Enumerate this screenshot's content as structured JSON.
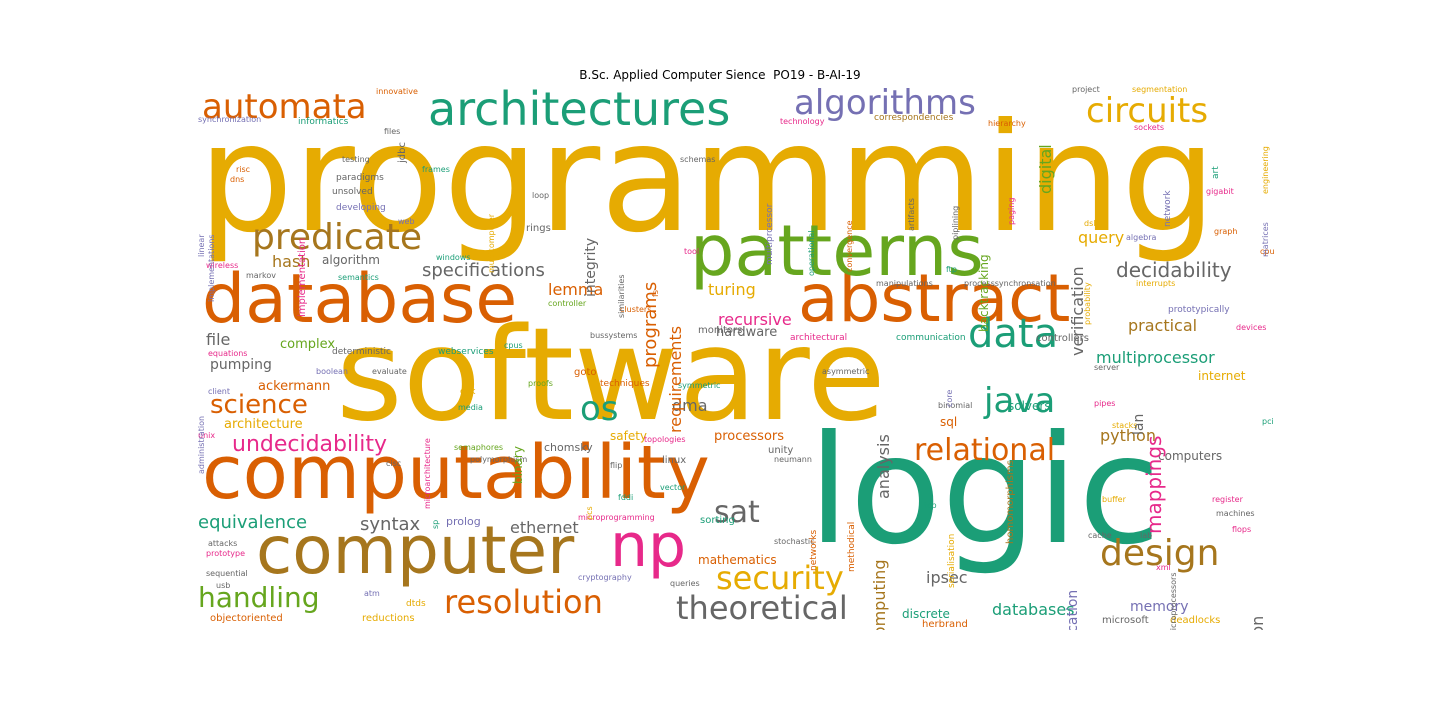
{
  "title": "B.Sc. Applied Computer Sience  PO19 - B-AI-19",
  "palette": {
    "orange": "#d95f02",
    "gold": "#e6ab02",
    "teal": "#1b9e77",
    "purple": "#7570b3",
    "magenta": "#e7298a",
    "green": "#66a61e",
    "brown": "#a6761d",
    "gray": "#666666"
  },
  "words": [
    {
      "text": "programming",
      "color": "gold",
      "size": 150,
      "rot": 0
    },
    {
      "text": "software",
      "color": "gold",
      "size": 128,
      "rot": 0
    },
    {
      "text": "logic",
      "color": "teal",
      "size": 150,
      "rot": 0
    },
    {
      "text": "computability",
      "color": "orange",
      "size": 74,
      "rot": 0
    },
    {
      "text": "database",
      "color": "orange",
      "size": 68,
      "rot": 0
    },
    {
      "text": "abstract",
      "color": "orange",
      "size": 66,
      "rot": 0
    },
    {
      "text": "patterns",
      "color": "green",
      "size": 70,
      "rot": 0
    },
    {
      "text": "computer",
      "color": "brown",
      "size": 66,
      "rot": 0
    },
    {
      "text": "architectures",
      "color": "teal",
      "size": 46,
      "rot": 0
    },
    {
      "text": "np",
      "color": "magenta",
      "size": 60,
      "rot": 0
    },
    {
      "text": "automata",
      "color": "orange",
      "size": 34,
      "rot": 0
    },
    {
      "text": "algorithms",
      "color": "purple",
      "size": 34,
      "rot": 0
    },
    {
      "text": "circuits",
      "color": "gold",
      "size": 34,
      "rot": 0
    },
    {
      "text": "predicate",
      "color": "brown",
      "size": 36,
      "rot": 0
    },
    {
      "text": "data",
      "color": "teal",
      "size": 40,
      "rot": 0
    },
    {
      "text": "java",
      "color": "teal",
      "size": 34,
      "rot": 0
    },
    {
      "text": "design",
      "color": "brown",
      "size": 36,
      "rot": 0
    },
    {
      "text": "security",
      "color": "gold",
      "size": 32,
      "rot": 0
    },
    {
      "text": "resolution",
      "color": "orange",
      "size": 32,
      "rot": 0
    },
    {
      "text": "theoretical",
      "color": "gray",
      "size": 32,
      "rot": 0
    },
    {
      "text": "relational",
      "color": "orange",
      "size": 30,
      "rot": 0
    },
    {
      "text": "handling",
      "color": "green",
      "size": 28,
      "rot": 0
    },
    {
      "text": "science",
      "color": "orange",
      "size": 26,
      "rot": 0
    },
    {
      "text": "os",
      "color": "teal",
      "size": 34,
      "rot": 0
    },
    {
      "text": "sat",
      "color": "gray",
      "size": 30,
      "rot": 0
    },
    {
      "text": "undecidability",
      "color": "magenta",
      "size": 22,
      "rot": 0
    },
    {
      "text": "decidability",
      "color": "gray",
      "size": 20,
      "rot": 0
    },
    {
      "text": "specifications",
      "color": "gray",
      "size": 18,
      "rot": 0
    },
    {
      "text": "equivalence",
      "color": "teal",
      "size": 18,
      "rot": 0
    },
    {
      "text": "syntax",
      "color": "gray",
      "size": 18,
      "rot": 0
    },
    {
      "text": "ethernet",
      "color": "gray",
      "size": 16,
      "rot": 0
    },
    {
      "text": "multiprocessor",
      "color": "teal",
      "size": 16,
      "rot": 0
    },
    {
      "text": "practical",
      "color": "brown",
      "size": 16,
      "rot": 0
    },
    {
      "text": "query",
      "color": "gold",
      "size": 16,
      "rot": 0
    },
    {
      "text": "python",
      "color": "brown",
      "size": 16,
      "rot": 0
    },
    {
      "text": "ipsec",
      "color": "gray",
      "size": 16,
      "rot": 0
    },
    {
      "text": "databases",
      "color": "teal",
      "size": 16,
      "rot": 0
    },
    {
      "text": "memory",
      "color": "purple",
      "size": 14,
      "rot": 0
    },
    {
      "text": "hash",
      "color": "brown",
      "size": 16,
      "rot": 0
    },
    {
      "text": "file",
      "color": "gray",
      "size": 16,
      "rot": 0
    },
    {
      "text": "lemma",
      "color": "orange",
      "size": 16,
      "rot": 0
    },
    {
      "text": "turing",
      "color": "gold",
      "size": 16,
      "rot": 0
    },
    {
      "text": "recursive",
      "color": "magenta",
      "size": 16,
      "rot": 0
    },
    {
      "text": "hardware",
      "color": "gray",
      "size": 13,
      "rot": 0
    },
    {
      "text": "pumping",
      "color": "gray",
      "size": 14,
      "rot": 0
    },
    {
      "text": "dma",
      "color": "gray",
      "size": 16,
      "rot": 0
    },
    {
      "text": "ackermann",
      "color": "orange",
      "size": 13,
      "rot": 0
    },
    {
      "text": "architecture",
      "color": "gold",
      "size": 13,
      "rot": 0
    },
    {
      "text": "complex",
      "color": "green",
      "size": 13,
      "rot": 0
    },
    {
      "text": "algorithm",
      "color": "gray",
      "size": 12,
      "rot": 0
    },
    {
      "text": "processors",
      "color": "orange",
      "size": 13,
      "rot": 0
    },
    {
      "text": "internet",
      "color": "gold",
      "size": 12,
      "rot": 0
    },
    {
      "text": "solvers",
      "color": "teal",
      "size": 12,
      "rot": 0
    },
    {
      "text": "computers",
      "color": "gray",
      "size": 12,
      "rot": 0
    },
    {
      "text": "mathematics",
      "color": "orange",
      "size": 12,
      "rot": 0
    },
    {
      "text": "safety",
      "color": "gold",
      "size": 12,
      "rot": 0
    },
    {
      "text": "sql",
      "color": "orange",
      "size": 12,
      "rot": 0
    },
    {
      "text": "discrete",
      "color": "teal",
      "size": 12,
      "rot": 0
    },
    {
      "text": "sorting",
      "color": "teal",
      "size": 10,
      "rot": 0
    },
    {
      "text": "chomsky",
      "color": "gray",
      "size": 11,
      "rot": 0
    },
    {
      "text": "prolog",
      "color": "purple",
      "size": 11,
      "rot": 0
    },
    {
      "text": "herbrand",
      "color": "orange",
      "size": 10,
      "rot": 0
    },
    {
      "text": "reductions",
      "color": "gold",
      "size": 10,
      "rot": 0
    },
    {
      "text": "objectoriented",
      "color": "orange",
      "size": 10,
      "rot": 0
    },
    {
      "text": "microsoft",
      "color": "gray",
      "size": 10,
      "rot": 0
    },
    {
      "text": "deadlocks",
      "color": "gold",
      "size": 10,
      "rot": 0
    },
    {
      "text": "linux",
      "color": "gray",
      "size": 10,
      "rot": 0
    },
    {
      "text": "unity",
      "color": "gray",
      "size": 10,
      "rot": 0
    },
    {
      "text": "goto",
      "color": "orange",
      "size": 10,
      "rot": 0
    },
    {
      "text": "techniques",
      "color": "orange",
      "size": 9,
      "rot": 0
    },
    {
      "text": "monitors",
      "color": "gray",
      "size": 10,
      "rot": 0
    },
    {
      "text": "controllers",
      "color": "gray",
      "size": 10,
      "rot": 0
    },
    {
      "text": "communication",
      "color": "teal",
      "size": 9,
      "rot": 0
    },
    {
      "text": "architectural",
      "color": "magenta",
      "size": 9,
      "rot": 0
    },
    {
      "text": "deterministic",
      "color": "gray",
      "size": 9,
      "rot": 0
    },
    {
      "text": "webservices",
      "color": "teal",
      "size": 9,
      "rot": 0
    },
    {
      "text": "evaluate",
      "color": "gray",
      "size": 8,
      "rot": 0
    },
    {
      "text": "boolean",
      "color": "purple",
      "size": 8,
      "rot": 0
    },
    {
      "text": "client",
      "color": "purple",
      "size": 8,
      "rot": 0
    },
    {
      "text": "equations",
      "color": "magenta",
      "size": 8,
      "rot": 0
    },
    {
      "text": "unix",
      "color": "magenta",
      "size": 8,
      "rot": 0
    },
    {
      "text": "cisc",
      "color": "gray",
      "size": 8,
      "rot": 0
    },
    {
      "text": "attacks",
      "color": "gray",
      "size": 8,
      "rot": 0
    },
    {
      "text": "prototype",
      "color": "magenta",
      "size": 8,
      "rot": 0
    },
    {
      "text": "sequential",
      "color": "gray",
      "size": 8,
      "rot": 0
    },
    {
      "text": "usb",
      "color": "gray",
      "size": 8,
      "rot": 0
    },
    {
      "text": "atm",
      "color": "purple",
      "size": 8,
      "rot": 0
    },
    {
      "text": "dtds",
      "color": "gold",
      "size": 9,
      "rot": 0
    },
    {
      "text": "queries",
      "color": "gray",
      "size": 8,
      "rot": 0
    },
    {
      "text": "cryptography",
      "color": "purple",
      "size": 8,
      "rot": 0
    },
    {
      "text": "microprogramming",
      "color": "magenta",
      "size": 8,
      "rot": 0
    },
    {
      "text": "stochastic",
      "color": "gray",
      "size": 8,
      "rot": 0
    },
    {
      "text": "fddi",
      "color": "teal",
      "size": 8,
      "rot": 0
    },
    {
      "text": "flip",
      "color": "gray",
      "size": 8,
      "rot": 0
    },
    {
      "text": "vector",
      "color": "teal",
      "size": 8,
      "rot": 0
    },
    {
      "text": "semaphores",
      "color": "green",
      "size": 8,
      "rot": 0
    },
    {
      "text": "polymorphism",
      "color": "gray",
      "size": 8,
      "rot": 0
    },
    {
      "text": "topologies",
      "color": "magenta",
      "size": 8,
      "rot": 0
    },
    {
      "text": "media",
      "color": "teal",
      "size": 8,
      "rot": 0
    },
    {
      "text": "cyk",
      "color": "gold",
      "size": 9,
      "rot": 0
    },
    {
      "text": "proofs",
      "color": "green",
      "size": 8,
      "rot": 0
    },
    {
      "text": "symmetric",
      "color": "teal",
      "size": 8,
      "rot": 0
    },
    {
      "text": "asymmetric",
      "color": "gray",
      "size": 8,
      "rot": 0
    },
    {
      "text": "bussystems",
      "color": "gray",
      "size": 8,
      "rot": 0
    },
    {
      "text": "cpus",
      "color": "teal",
      "size": 8,
      "rot": 0
    },
    {
      "text": "clusters",
      "color": "orange",
      "size": 8,
      "rot": 0
    },
    {
      "text": "controller",
      "color": "green",
      "size": 8,
      "rot": 0
    },
    {
      "text": "manipulations",
      "color": "gray",
      "size": 8,
      "rot": 0
    },
    {
      "text": "processsynchronsation",
      "color": "gray",
      "size": 8,
      "rot": 0
    },
    {
      "text": "interrupts",
      "color": "gold",
      "size": 8,
      "rot": 0
    },
    {
      "text": "prototypically",
      "color": "purple",
      "size": 9,
      "rot": 0
    },
    {
      "text": "devices",
      "color": "magenta",
      "size": 8,
      "rot": 0
    },
    {
      "text": "server",
      "color": "gray",
      "size": 8,
      "rot": 0
    },
    {
      "text": "pipes",
      "color": "magenta",
      "size": 8,
      "rot": 0
    },
    {
      "text": "pci",
      "color": "teal",
      "size": 8,
      "rot": 0
    },
    {
      "text": "stacks",
      "color": "gold",
      "size": 8,
      "rot": 0
    },
    {
      "text": "buffer",
      "color": "gold",
      "size": 8,
      "rot": 0
    },
    {
      "text": "register",
      "color": "magenta",
      "size": 8,
      "rot": 0
    },
    {
      "text": "machines",
      "color": "gray",
      "size": 8,
      "rot": 0
    },
    {
      "text": "flops",
      "color": "magenta",
      "size": 8,
      "rot": 0
    },
    {
      "text": "cache",
      "color": "gray",
      "size": 8,
      "rot": 0
    },
    {
      "text": "lab",
      "color": "gray",
      "size": 8,
      "rot": 0
    },
    {
      "text": "xml",
      "color": "magenta",
      "size": 8,
      "rot": 0
    },
    {
      "text": "tcp",
      "color": "teal",
      "size": 8,
      "rot": 0
    },
    {
      "text": "binomial",
      "color": "gray",
      "size": 8,
      "rot": 0
    },
    {
      "text": "neumann",
      "color": "gray",
      "size": 8,
      "rot": 0
    },
    {
      "text": "ftp",
      "color": "teal",
      "size": 8,
      "rot": 0
    },
    {
      "text": "tool",
      "color": "magenta",
      "size": 8,
      "rot": 0
    },
    {
      "text": "windows",
      "color": "teal",
      "size": 8,
      "rot": 0
    },
    {
      "text": "semantics",
      "color": "teal",
      "size": 8,
      "rot": 0
    },
    {
      "text": "markov",
      "color": "gray",
      "size": 8,
      "rot": 0
    },
    {
      "text": "wireless",
      "color": "magenta",
      "size": 8,
      "rot": 0
    },
    {
      "text": "rings",
      "color": "gray",
      "size": 10,
      "rot": 0
    },
    {
      "text": "loop",
      "color": "gray",
      "size": 8,
      "rot": 0
    },
    {
      "text": "frames",
      "color": "teal",
      "size": 8,
      "rot": 0
    },
    {
      "text": "testing",
      "color": "gray",
      "size": 8,
      "rot": 0
    },
    {
      "text": "paradigms",
      "color": "gray",
      "size": 9,
      "rot": 0
    },
    {
      "text": "unsolved",
      "color": "gray",
      "size": 9,
      "rot": 0
    },
    {
      "text": "developing",
      "color": "purple",
      "size": 9,
      "rot": 0
    },
    {
      "text": "web",
      "color": "purple",
      "size": 8,
      "rot": 0
    },
    {
      "text": "dns",
      "color": "orange",
      "size": 8,
      "rot": 0
    },
    {
      "text": "risc",
      "color": "orange",
      "size": 8,
      "rot": 0
    },
    {
      "text": "files",
      "color": "gray",
      "size": 8,
      "rot": 0
    },
    {
      "text": "informatics",
      "color": "teal",
      "size": 9,
      "rot": 0
    },
    {
      "text": "synchronization",
      "color": "purple",
      "size": 8,
      "rot": 0
    },
    {
      "text": "innovative",
      "color": "orange",
      "size": 8,
      "rot": 0
    },
    {
      "text": "schemas",
      "color": "gray",
      "size": 8,
      "rot": 0
    },
    {
      "text": "technology",
      "color": "magenta",
      "size": 8,
      "rot": 0
    },
    {
      "text": "correspondencies",
      "color": "brown",
      "size": 9,
      "rot": 0
    },
    {
      "text": "hierarchy",
      "color": "orange",
      "size": 8,
      "rot": 0
    },
    {
      "text": "project",
      "color": "gray",
      "size": 8,
      "rot": 0
    },
    {
      "text": "segmentation",
      "color": "gold",
      "size": 8,
      "rot": 0
    },
    {
      "text": "sockets",
      "color": "magenta",
      "size": 8,
      "rot": 0
    },
    {
      "text": "gigabit",
      "color": "magenta",
      "size": 8,
      "rot": 0
    },
    {
      "text": "graph",
      "color": "orange",
      "size": 8,
      "rot": 0
    },
    {
      "text": "cpu",
      "color": "orange",
      "size": 8,
      "rot": 0
    },
    {
      "text": "dsl",
      "color": "gold",
      "size": 8,
      "rot": 0
    },
    {
      "text": "algebra",
      "color": "purple",
      "size": 8,
      "rot": 0
    },
    {
      "text": "backtracking",
      "color": "green",
      "size": 12,
      "rot": -90
    },
    {
      "text": "requirements",
      "color": "orange",
      "size": 16,
      "rot": -90
    },
    {
      "text": "programs",
      "color": "orange",
      "size": 18,
      "rot": -90
    },
    {
      "text": "integrity",
      "color": "gray",
      "size": 14,
      "rot": -90
    },
    {
      "text": "verification",
      "color": "gray",
      "size": 16,
      "rot": -90
    },
    {
      "text": "digital",
      "color": "green",
      "size": 16,
      "rot": -90
    },
    {
      "text": "mappings",
      "color": "magenta",
      "size": 20,
      "rot": -90
    },
    {
      "text": "analysis",
      "color": "gray",
      "size": 16,
      "rot": -90
    },
    {
      "text": "computing",
      "color": "brown",
      "size": 16,
      "rot": -90
    },
    {
      "text": "authentication",
      "color": "gray",
      "size": 16,
      "rot": -90
    },
    {
      "text": "specification",
      "color": "purple",
      "size": 14,
      "rot": -90
    },
    {
      "text": "lan",
      "color": "gray",
      "size": 14,
      "rot": -90
    },
    {
      "text": "binary",
      "color": "green",
      "size": 12,
      "rot": -90
    },
    {
      "text": "jdbc",
      "color": "gray",
      "size": 10,
      "rot": -90
    },
    {
      "text": "implementation",
      "color": "magenta",
      "size": 10,
      "rot": -90
    },
    {
      "text": "linear",
      "color": "purple",
      "size": 8,
      "rot": -90
    },
    {
      "text": "implementations",
      "color": "purple",
      "size": 8,
      "rot": -90
    },
    {
      "text": "multicomputer",
      "color": "gold",
      "size": 8,
      "rot": -90
    },
    {
      "text": "multiprcessor",
      "color": "purple",
      "size": 9,
      "rot": -90
    },
    {
      "text": "operational",
      "color": "teal",
      "size": 8,
      "rot": -90
    },
    {
      "text": "convergence",
      "color": "orange",
      "size": 8,
      "rot": -90
    },
    {
      "text": "artifacts",
      "color": "gray",
      "size": 8,
      "rot": -90
    },
    {
      "text": "piplining",
      "color": "gray",
      "size": 8,
      "rot": -90
    },
    {
      "text": "paging",
      "color": "magenta",
      "size": 8,
      "rot": -90
    },
    {
      "text": "network",
      "color": "purple",
      "size": 9,
      "rot": -90
    },
    {
      "text": "art",
      "color": "teal",
      "size": 9,
      "rot": -90
    },
    {
      "text": "matrices",
      "color": "purple",
      "size": 8,
      "rot": -90
    },
    {
      "text": "engineering",
      "color": "gold",
      "size": 8,
      "rot": -90
    },
    {
      "text": "probability",
      "color": "gold",
      "size": 8,
      "rot": -90
    },
    {
      "text": "homomorphisms",
      "color": "brown",
      "size": 10,
      "rot": -90
    },
    {
      "text": "serialisation",
      "color": "gold",
      "size": 9,
      "rot": -90
    },
    {
      "text": "core",
      "color": "purple",
      "size": 8,
      "rot": -90
    },
    {
      "text": "networks",
      "color": "orange",
      "size": 9,
      "rot": -90
    },
    {
      "text": "methodical",
      "color": "orange",
      "size": 9,
      "rot": -90
    },
    {
      "text": "microarchitecture",
      "color": "magenta",
      "size": 8,
      "rot": -90
    },
    {
      "text": "administration",
      "color": "purple",
      "size": 8,
      "rot": -90
    },
    {
      "text": "similarities",
      "color": "gray",
      "size": 8,
      "rot": -90
    },
    {
      "text": "fs",
      "color": "orange",
      "size": 8,
      "rot": -90
    },
    {
      "text": "pcs",
      "color": "gold",
      "size": 8,
      "rot": -90
    },
    {
      "text": "sp",
      "color": "teal",
      "size": 8,
      "rot": -90
    },
    {
      "text": "microprocessors",
      "color": "gray",
      "size": 8,
      "rot": -90
    }
  ]
}
